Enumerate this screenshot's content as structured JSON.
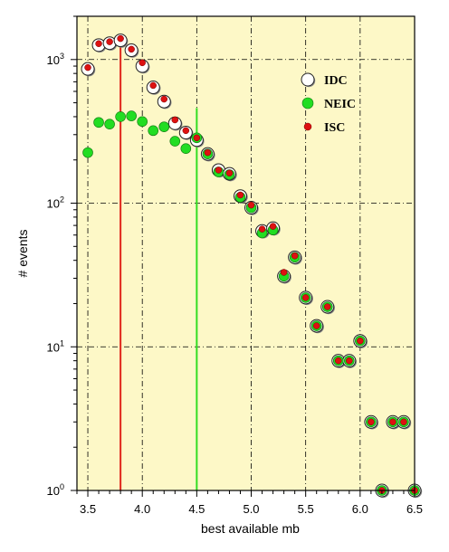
{
  "chart_data": {
    "type": "scatter",
    "title": "",
    "xlabel": "best available mb",
    "ylabel": "# events",
    "xlim": [
      3.4,
      6.5
    ],
    "ylim": [
      1,
      2000
    ],
    "yscale": "log",
    "x_ticks": [
      3.5,
      4.0,
      4.5,
      5.0,
      5.5,
      6.0,
      6.5
    ],
    "x_tick_labels": [
      "3.5",
      "4.0",
      "4.5",
      "5.0",
      "5.5",
      "6.0",
      "6.5"
    ],
    "y_ticks": [
      {
        "value": 1,
        "base": "10",
        "exp": "0"
      },
      {
        "value": 10,
        "base": "10",
        "exp": "1"
      },
      {
        "value": 100,
        "base": "10",
        "exp": "2"
      },
      {
        "value": 1000,
        "base": "10",
        "exp": "3"
      }
    ],
    "grid": true,
    "background": "#fdf8c7",
    "legend_position": "top-right",
    "vertical_lines": [
      {
        "x": 3.8,
        "color": "#e0281c"
      },
      {
        "x": 4.5,
        "color": "#33dd22"
      }
    ],
    "series": [
      {
        "name": "IDC",
        "marker": "open-circle",
        "color": "#ffffff",
        "points": [
          [
            3.5,
            860
          ],
          [
            3.6,
            1260
          ],
          [
            3.7,
            1300
          ],
          [
            3.8,
            1360
          ],
          [
            3.9,
            1160
          ],
          [
            4.0,
            900
          ],
          [
            4.1,
            640
          ],
          [
            4.2,
            510
          ],
          [
            4.3,
            360
          ],
          [
            4.4,
            310
          ],
          [
            4.5,
            275
          ],
          [
            4.6,
            220
          ],
          [
            4.7,
            170
          ],
          [
            4.8,
            160
          ],
          [
            4.9,
            112
          ],
          [
            5.0,
            93
          ],
          [
            5.1,
            64
          ],
          [
            5.2,
            67
          ],
          [
            5.3,
            31
          ],
          [
            5.4,
            42
          ],
          [
            5.5,
            22
          ],
          [
            5.6,
            14
          ],
          [
            5.7,
            19
          ],
          [
            5.8,
            8
          ],
          [
            5.9,
            8
          ],
          [
            6.0,
            11
          ],
          [
            6.1,
            3
          ],
          [
            6.2,
            1
          ],
          [
            6.3,
            3
          ],
          [
            6.4,
            3
          ],
          [
            6.5,
            1
          ]
        ]
      },
      {
        "name": "NEIC",
        "marker": "circle",
        "color": "#22dd22",
        "points": [
          [
            3.5,
            225
          ],
          [
            3.6,
            365
          ],
          [
            3.7,
            355
          ],
          [
            3.8,
            400
          ],
          [
            3.9,
            405
          ],
          [
            4.0,
            370
          ],
          [
            4.1,
            320
          ],
          [
            4.2,
            340
          ],
          [
            4.3,
            270
          ],
          [
            4.4,
            240
          ],
          [
            4.5,
            285
          ],
          [
            4.6,
            220
          ],
          [
            4.7,
            165
          ],
          [
            4.8,
            158
          ],
          [
            4.9,
            110
          ],
          [
            5.0,
            93
          ],
          [
            5.1,
            62
          ],
          [
            5.2,
            65
          ],
          [
            5.3,
            31
          ],
          [
            5.4,
            42
          ],
          [
            5.5,
            22
          ],
          [
            5.6,
            14
          ],
          [
            5.7,
            19
          ],
          [
            5.8,
            8
          ],
          [
            5.9,
            8
          ],
          [
            6.0,
            11
          ],
          [
            6.1,
            3
          ],
          [
            6.2,
            1
          ],
          [
            6.3,
            3
          ],
          [
            6.4,
            3
          ],
          [
            6.5,
            1
          ]
        ]
      },
      {
        "name": "ISC",
        "marker": "small-dot",
        "color": "#dd1111",
        "points": [
          [
            3.5,
            880
          ],
          [
            3.6,
            1290
          ],
          [
            3.7,
            1330
          ],
          [
            3.8,
            1400
          ],
          [
            3.9,
            1180
          ],
          [
            4.0,
            950
          ],
          [
            4.1,
            660
          ],
          [
            4.2,
            530
          ],
          [
            4.3,
            380
          ],
          [
            4.4,
            320
          ],
          [
            4.5,
            285
          ],
          [
            4.6,
            225
          ],
          [
            4.7,
            170
          ],
          [
            4.8,
            162
          ],
          [
            4.9,
            114
          ],
          [
            5.0,
            97
          ],
          [
            5.1,
            66
          ],
          [
            5.2,
            69
          ],
          [
            5.3,
            33
          ],
          [
            5.4,
            43
          ],
          [
            5.5,
            22
          ],
          [
            5.6,
            14
          ],
          [
            5.7,
            19
          ],
          [
            5.8,
            8
          ],
          [
            5.9,
            8
          ],
          [
            6.0,
            11
          ],
          [
            6.1,
            3
          ],
          [
            6.2,
            1
          ],
          [
            6.3,
            3
          ],
          [
            6.4,
            3
          ],
          [
            6.5,
            1
          ]
        ]
      }
    ]
  }
}
